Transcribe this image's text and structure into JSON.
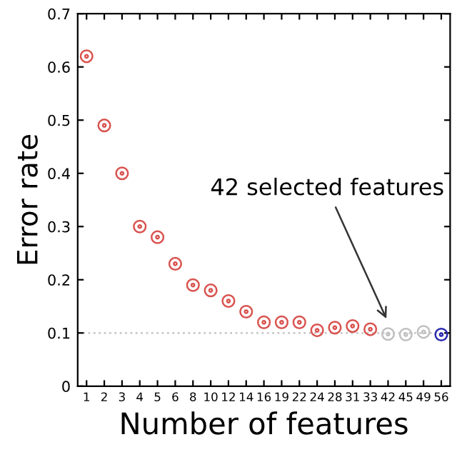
{
  "chart_data": {
    "type": "scatter",
    "xlabel": "Number of features",
    "ylabel": "Error rate",
    "categories": [
      "1",
      "2",
      "3",
      "4",
      "5",
      "6",
      "8",
      "10",
      "12",
      "14",
      "16",
      "19",
      "22",
      "24",
      "28",
      "31",
      "33",
      "42",
      "45",
      "49",
      "56"
    ],
    "values": [
      0.62,
      0.49,
      0.4,
      0.3,
      0.28,
      0.23,
      0.19,
      0.18,
      0.16,
      0.14,
      0.12,
      0.12,
      0.12,
      0.105,
      0.11,
      0.113,
      0.107,
      0.098,
      0.097,
      0.102,
      0.097
    ],
    "colors": [
      "#d9534f",
      "#d9534f",
      "#d9534f",
      "#d9534f",
      "#d9534f",
      "#d9534f",
      "#d9534f",
      "#d9534f",
      "#d9534f",
      "#d9534f",
      "#d9534f",
      "#d9534f",
      "#d9534f",
      "#d9534f",
      "#d9534f",
      "#d9534f",
      "#d9534f",
      "#c0c0c0",
      "#c0c0c0",
      "#c0c0c0",
      "#2a2ab0"
    ],
    "marker": "circle",
    "ylim": [
      0,
      0.7
    ],
    "yticks": [
      0,
      0.1,
      0.2,
      0.3,
      0.4,
      0.5,
      0.6,
      0.7
    ],
    "ref_lines": [
      {
        "axis": "y",
        "value": 0.1,
        "color": "#c8c8c8",
        "line_style": "dotted"
      }
    ],
    "annotations": [
      {
        "text": "42 selected features",
        "x": "42",
        "y": 0.12
      }
    ],
    "grid": false,
    "legend": false
  }
}
